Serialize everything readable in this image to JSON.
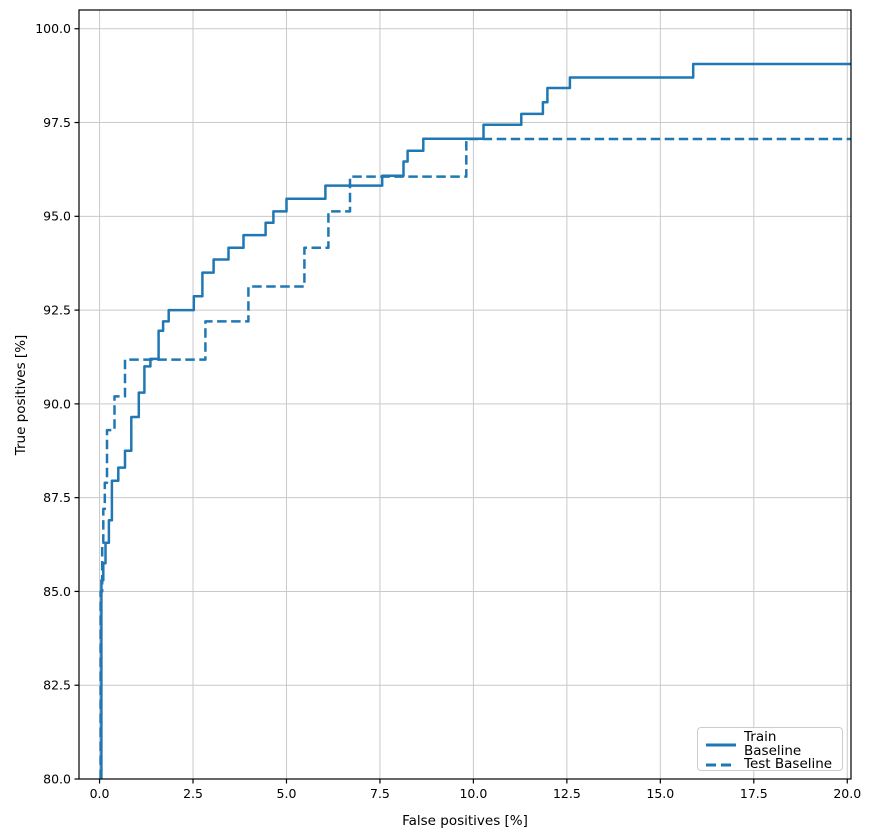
{
  "figure": {
    "background": "#ffffff",
    "grid_color": "#c9c9c9",
    "spine_color": "#000000",
    "text_color": "#000000"
  },
  "chart_data": {
    "type": "line",
    "subtype": "step-post-roc",
    "title": "",
    "xlabel": "False positives [%]",
    "ylabel": "True positives [%]",
    "xlim": [
      -0.55,
      20.1
    ],
    "ylim": [
      80,
      100.5
    ],
    "xticks": [
      0.0,
      2.5,
      5.0,
      7.5,
      10.0,
      12.5,
      15.0,
      17.5,
      20.0
    ],
    "yticks": [
      80.0,
      82.5,
      85.0,
      87.5,
      90.0,
      92.5,
      95.0,
      97.5,
      100.0
    ],
    "tick_decimals": 1,
    "grid": true,
    "legend_position": "lower right",
    "series": [
      {
        "name": "Train Baseline",
        "style": "solid",
        "color": "#1f77b4",
        "line_width": 2.5,
        "start": [
          0.05,
          80
        ],
        "steps": [
          [
            0.05,
            85.3
          ],
          [
            0.1,
            85.75
          ],
          [
            0.16,
            86.3
          ],
          [
            0.25,
            86.9
          ],
          [
            0.33,
            87.95
          ],
          [
            0.5,
            88.3
          ],
          [
            0.68,
            88.75
          ],
          [
            0.85,
            89.65
          ],
          [
            1.05,
            90.3
          ],
          [
            1.2,
            91.0
          ],
          [
            1.36,
            91.2
          ],
          [
            1.58,
            91.95
          ],
          [
            1.7,
            92.2
          ],
          [
            1.85,
            92.5
          ],
          [
            2.52,
            92.87
          ],
          [
            2.75,
            93.5
          ],
          [
            3.05,
            93.85
          ],
          [
            3.45,
            94.16
          ],
          [
            3.85,
            94.5
          ],
          [
            4.44,
            94.83
          ],
          [
            4.65,
            95.13
          ],
          [
            5.0,
            95.47
          ],
          [
            6.04,
            95.82
          ],
          [
            7.56,
            96.08
          ],
          [
            8.13,
            96.46
          ],
          [
            8.24,
            96.75
          ],
          [
            8.66,
            97.07
          ],
          [
            10.27,
            97.44
          ],
          [
            11.28,
            97.73
          ],
          [
            11.86,
            98.04
          ],
          [
            11.98,
            98.42
          ],
          [
            12.58,
            98.7
          ],
          [
            15.88,
            99.06
          ]
        ],
        "end_x": 20.1
      },
      {
        "name": "Test Baseline",
        "style": "dashed",
        "color": "#1f77b4",
        "line_width": 2.5,
        "start": [
          0.03,
          80
        ],
        "steps": [
          [
            0.03,
            85.0
          ],
          [
            0.07,
            86.3
          ],
          [
            0.1,
            87.2
          ],
          [
            0.14,
            87.9
          ],
          [
            0.2,
            89.3
          ],
          [
            0.4,
            90.2
          ],
          [
            0.68,
            91.18
          ],
          [
            2.83,
            92.2
          ],
          [
            3.98,
            93.13
          ],
          [
            5.48,
            94.16
          ],
          [
            6.12,
            95.13
          ],
          [
            6.7,
            96.06
          ],
          [
            9.81,
            97.06
          ]
        ],
        "end_x": 20.1
      }
    ]
  }
}
